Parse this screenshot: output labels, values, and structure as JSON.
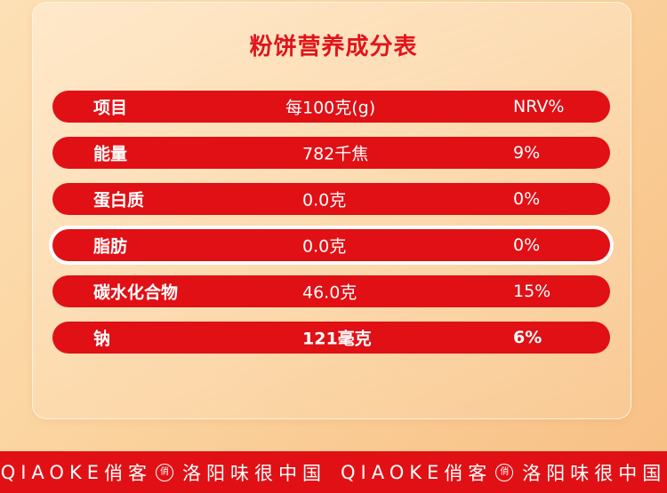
{
  "title": "粉饼营养成分表",
  "table": {
    "header": {
      "item": "项目",
      "per100": "每100克(g)",
      "nrv": "NRV%"
    },
    "rows": [
      {
        "item": "能量",
        "per100": "782千焦",
        "nrv": "9%"
      },
      {
        "item": "蛋白质",
        "per100": "0.0克",
        "nrv": "0%"
      },
      {
        "item": "脂肪",
        "per100": "0.0克",
        "nrv": "0%"
      },
      {
        "item": "碳水化合物",
        "per100": "46.0克",
        "nrv": "15%"
      },
      {
        "item": "钠",
        "per100": "121毫克",
        "nrv": "6%"
      }
    ]
  },
  "footer": {
    "brand_en": "QIAOKE",
    "brand_cn": "俏客",
    "seal": "俏",
    "slogan": "洛阳味很中国"
  },
  "colors": {
    "accent": "#e01015",
    "background": "#fbd39e"
  }
}
